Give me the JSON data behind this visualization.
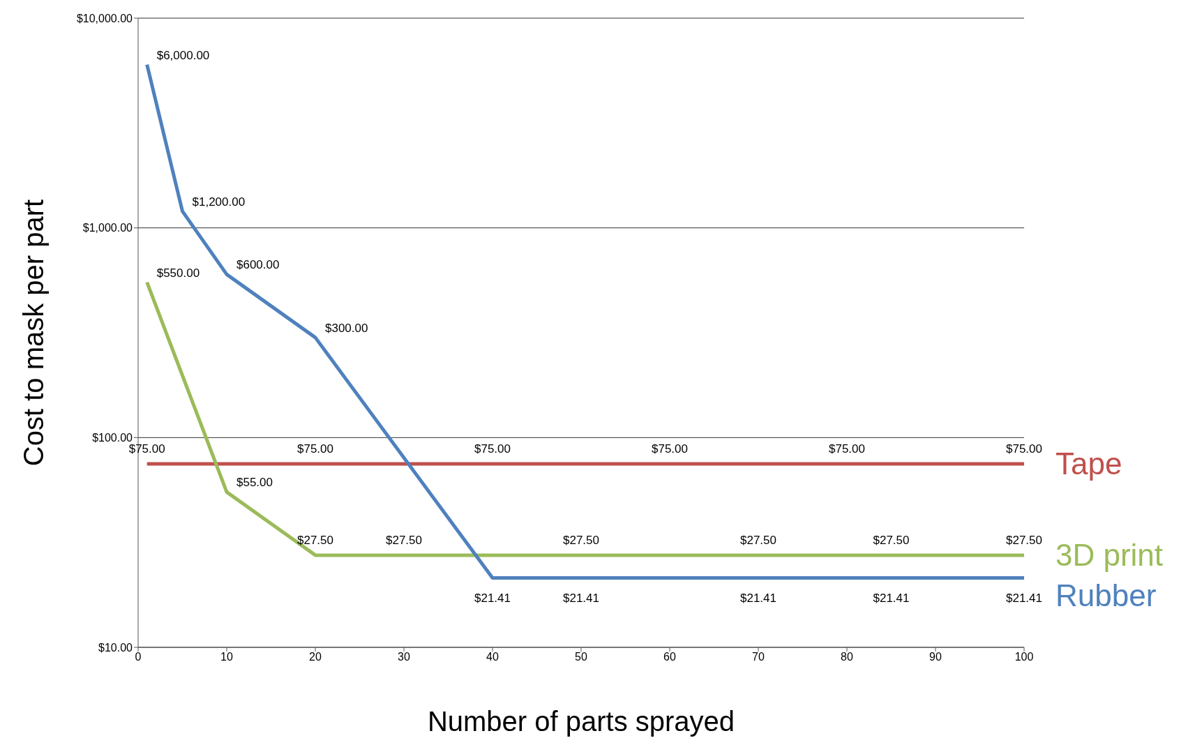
{
  "chart_data": {
    "type": "line",
    "xlabel": "Number of parts sprayed",
    "ylabel": "Cost to mask per part",
    "log": "y",
    "grid": "y",
    "xlim": [
      0,
      100
    ],
    "xticks": [
      0,
      10,
      20,
      30,
      40,
      50,
      60,
      70,
      80,
      90,
      100
    ],
    "ylim": [
      10,
      10000
    ],
    "yticks": [
      {
        "value": 10,
        "label": "$10.00"
      },
      {
        "value": 100,
        "label": "$100.00"
      },
      {
        "value": 1000,
        "label": "$1,000.00"
      },
      {
        "value": 10000,
        "label": "$10,000.00"
      }
    ],
    "series": [
      {
        "name": "Tape",
        "color": "#c0504d",
        "x": [
          1,
          20,
          40,
          60,
          80,
          100
        ],
        "values": [
          75,
          75,
          75,
          75,
          75,
          75
        ],
        "value_labels": [
          "$75.00",
          "$75.00",
          "$75.00",
          "$75.00",
          "$75.00",
          "$75.00"
        ]
      },
      {
        "name": "3D print",
        "color": "#9bbb59",
        "x": [
          1,
          10,
          20,
          30,
          50,
          70,
          85,
          100
        ],
        "values": [
          550,
          55,
          27.5,
          27.5,
          27.5,
          27.5,
          27.5,
          27.5
        ],
        "value_labels": [
          "$550.00",
          "$55.00",
          "$27.50",
          "$27.50",
          "$27.50",
          "$27.50",
          "$27.50",
          "$27.50"
        ]
      },
      {
        "name": "Rubber",
        "color": "#4f81bd",
        "x": [
          1,
          5,
          10,
          20,
          40,
          50,
          70,
          85,
          100
        ],
        "values": [
          6000,
          1200,
          600,
          300,
          21.41,
          21.41,
          21.41,
          21.41,
          21.41
        ],
        "value_labels": [
          "$6,000.00",
          "$1,200.00",
          "$600.00",
          "$300.00",
          "$21.41",
          "$21.41",
          "$21.41",
          "$21.41",
          "$21.41"
        ]
      }
    ]
  }
}
